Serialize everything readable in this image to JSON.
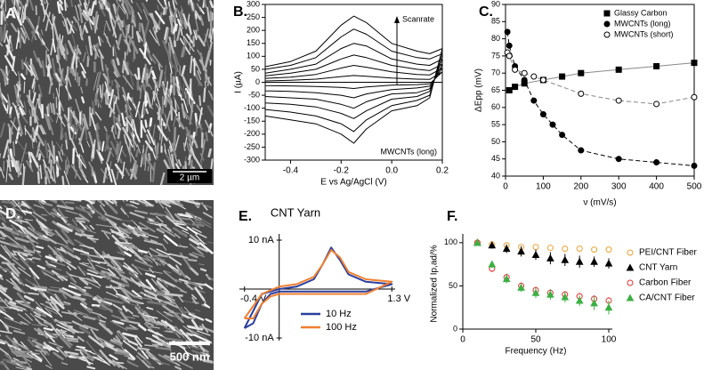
{
  "images": [
    {
      "label": "A.",
      "scale_bar": "2 µm"
    },
    {
      "label": "D.",
      "scale_bar": "500 nm"
    }
  ],
  "chart_data": [
    {
      "type": "line",
      "label": "B.",
      "x_label": "E vs Ag/AgCl (V)",
      "y_label": "I (µA)",
      "annotations": [
        "Scanrate",
        "MWCNTs (long)"
      ],
      "closed": true,
      "x": [
        -0.5,
        -0.4,
        -0.3,
        -0.2,
        -0.15,
        -0.1,
        0,
        0.1,
        0.15,
        0.2,
        0.15,
        0.1,
        0,
        -0.1,
        -0.15,
        -0.2,
        -0.3,
        -0.4,
        -0.5
      ],
      "series": [
        {
          "color": "#000000",
          "values": [
            60,
            80,
            120,
            220,
            255,
            230,
            150,
            120,
            110,
            130,
            -60,
            -90,
            -110,
            -180,
            -235,
            -200,
            -160,
            -145,
            -130
          ]
        },
        {
          "color": "#000000",
          "values": [
            50,
            65,
            95,
            175,
            205,
            185,
            120,
            95,
            90,
            110,
            -50,
            -70,
            -90,
            -145,
            -190,
            -160,
            -130,
            -115,
            -105
          ]
        },
        {
          "color": "#000000",
          "values": [
            35,
            50,
            70,
            130,
            150,
            140,
            90,
            70,
            65,
            90,
            -35,
            -55,
            -65,
            -110,
            -140,
            -120,
            -95,
            -85,
            -80
          ]
        },
        {
          "color": "#000000",
          "values": [
            25,
            35,
            50,
            90,
            105,
            95,
            65,
            50,
            45,
            70,
            -25,
            -40,
            -45,
            -75,
            -100,
            -85,
            -65,
            -60,
            -55
          ]
        },
        {
          "color": "#000000",
          "values": [
            15,
            20,
            30,
            55,
            65,
            58,
            40,
            30,
            28,
            55,
            -15,
            -22,
            -28,
            -45,
            -60,
            -50,
            -40,
            -35,
            -33
          ]
        },
        {
          "color": "#000000",
          "values": [
            5,
            8,
            12,
            22,
            26,
            23,
            16,
            12,
            11,
            40,
            -6,
            -9,
            -11,
            -18,
            -24,
            -20,
            -16,
            -14,
            -13
          ]
        }
      ],
      "xlim": [
        -0.5,
        0.2
      ],
      "ylim": [
        -300,
        300
      ],
      "xticks": [
        -0.4,
        -0.2,
        {
          "value": 0,
          "label": "0.0"
        },
        0.2
      ],
      "yticks": [
        -300,
        -250,
        -200,
        -150,
        -100,
        -50,
        0,
        50,
        100,
        150,
        200,
        250,
        300
      ]
    },
    {
      "type": "scatter",
      "label": "C.",
      "x_label": "ν (mV/s)",
      "y_label": "ΔEpp (mV)",
      "legend": "top-right",
      "xlim": [
        0,
        500
      ],
      "ylim": [
        40,
        90
      ],
      "xticks": [
        0,
        100,
        200,
        300,
        400,
        500
      ],
      "yticks": [
        40,
        45,
        50,
        55,
        60,
        65,
        70,
        75,
        80,
        85,
        90
      ],
      "series": [
        {
          "name": "Glassy Carbon",
          "color": "#000000",
          "marker": "square",
          "marker_fill": true,
          "line": "solid",
          "line_color": "#888888",
          "x": [
            10,
            25,
            50,
            100,
            150,
            200,
            300,
            400,
            500
          ],
          "values": [
            65,
            66,
            67,
            68,
            69,
            70,
            71,
            72,
            73
          ]
        },
        {
          "name": "MWCNTs (long)",
          "color": "#000000",
          "marker": "circle",
          "marker_fill": true,
          "line": "dashed",
          "line_color": "#000000",
          "x": [
            5,
            10,
            25,
            50,
            75,
            100,
            125,
            150,
            200,
            300,
            400,
            500
          ],
          "values": [
            82,
            78,
            72,
            68,
            62,
            58,
            55,
            52,
            47.5,
            45,
            44,
            43
          ]
        },
        {
          "name": "MWCNTs (short)",
          "color": "#000000",
          "marker": "circle",
          "marker_fill": false,
          "line": "dashed",
          "line_color": "#888888",
          "x": [
            5,
            10,
            25,
            50,
            75,
            100,
            200,
            300,
            400,
            500
          ],
          "values": [
            76,
            75,
            71,
            70,
            69,
            68,
            64,
            62,
            61,
            63
          ]
        }
      ]
    },
    {
      "type": "line",
      "label": "E.",
      "title": "CNT Yarn",
      "legend": "bottom",
      "closed": false,
      "x": [
        -0.4,
        -0.2,
        0,
        0.2,
        0.4,
        0.5,
        0.6,
        0.7,
        0.8,
        1.0,
        1.3,
        1.0,
        0.8,
        0.6,
        0.4,
        0.2,
        0,
        -0.1,
        -0.2,
        -0.3,
        -0.4
      ],
      "series": [
        {
          "name": "10 Hz",
          "color": "#2b3f9e",
          "values": [
            -8,
            -1,
            0,
            0.5,
            2,
            5,
            8.5,
            6,
            3,
            1.5,
            1,
            -0.5,
            -0.5,
            -0.5,
            -0.5,
            -0.5,
            -0.5,
            -1,
            -3,
            -7,
            -8
          ]
        },
        {
          "name": "100 Hz",
          "color": "#f08030",
          "values": [
            -6,
            -1,
            0.5,
            1,
            2.5,
            5,
            8,
            6.5,
            3.5,
            2,
            1.5,
            -1,
            -1,
            -1,
            -1,
            -1,
            -1,
            -1.5,
            -3,
            -6,
            -6
          ]
        }
      ],
      "xlim": [
        -0.5,
        1.4
      ],
      "ylim": [
        -12,
        12
      ],
      "xticks": [
        {
          "value": -0.4,
          "label": "-0.4 V"
        },
        {
          "value": 1.3,
          "label": "1.3 V"
        }
      ],
      "yticks": [
        {
          "value": 10,
          "label": "10 nA"
        },
        {
          "value": -10,
          "label": "-10 nA"
        }
      ]
    },
    {
      "type": "errorbar",
      "label": "F.",
      "x_label": "Frequency (Hz)",
      "y_label": "Normalized Ip,ad/%",
      "legend": "right",
      "x": [
        10,
        20,
        30,
        40,
        50,
        60,
        70,
        80,
        90,
        100
      ],
      "xlim": [
        0,
        100
      ],
      "ylim": [
        0,
        105
      ],
      "xticks": [
        0,
        50,
        100
      ],
      "yticks": [
        0,
        50,
        100
      ],
      "series": [
        {
          "name": "PEI/CNT Fiber",
          "color": "#f0a030",
          "marker": "circle",
          "marker_fill": false,
          "values": [
            100,
            98,
            97,
            95,
            95,
            94,
            93,
            93,
            92,
            92
          ],
          "errors": [
            1,
            2,
            2,
            2,
            2,
            2,
            2,
            2,
            2,
            2
          ]
        },
        {
          "name": "CNT Yarn",
          "color": "#000000",
          "marker": "triangle",
          "marker_fill": true,
          "values": [
            100,
            97,
            93,
            90,
            86,
            82,
            80,
            78,
            78,
            76
          ],
          "errors": [
            2,
            4,
            5,
            6,
            6,
            7,
            7,
            7,
            6,
            6
          ]
        },
        {
          "name": "Carbon Fiber",
          "color": "#e03030",
          "marker": "circle",
          "marker_fill": false,
          "values": [
            100,
            70,
            60,
            50,
            45,
            42,
            40,
            38,
            35,
            33
          ],
          "errors": [
            2,
            4,
            4,
            4,
            4,
            4,
            4,
            4,
            4,
            4
          ]
        },
        {
          "name": "CA/CNT Fiber",
          "color": "#3cb043",
          "marker": "triangle",
          "marker_fill": true,
          "values": [
            100,
            75,
            58,
            48,
            42,
            40,
            37,
            33,
            30,
            25
          ],
          "errors": [
            2,
            4,
            5,
            5,
            6,
            6,
            6,
            6,
            8,
            8
          ]
        }
      ]
    }
  ]
}
